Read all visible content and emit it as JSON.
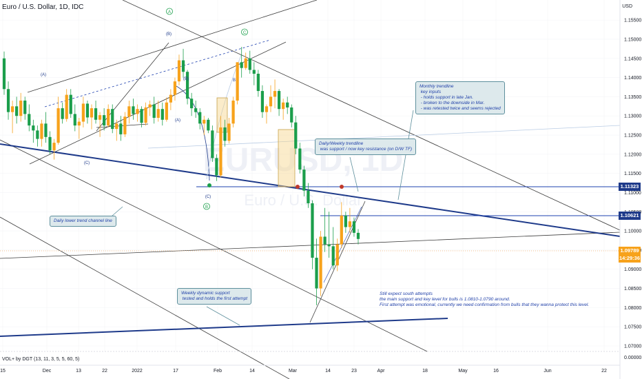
{
  "symbol": "Euro / U.S. Dollar, 1D, IDC",
  "currency": "USD",
  "indicator_label": "VOL+ by DGT (13, 11, 3, 5, 5, 60, 5)",
  "watermark": {
    "big": "EURUSD, 1D",
    "small": "Euro / U.S. Dollar"
  },
  "colors": {
    "up": "#f7a21b",
    "down": "#1b9e4b",
    "line": "#1e3a8a",
    "channel": "#3d3d3d",
    "hline": "#1e40af",
    "orange_dash": "#f6b26b"
  },
  "callouts": {
    "monthly": "Monthly trendline\n key inputs\n - holds support in late Jan.\n - broken to the downside in Mar.\n - was retested twice and seems rejected",
    "daily_weekly": "Daily/Weekly trendline\n was support / now key resistance (on D/W TF)",
    "lower_channel": "Daily lower trend channel line",
    "weekly_support": "Weekly dynamic support\n tested and holds the first attempt"
  },
  "bottom_note": "Still expect south attempts\nthe main support and key level for bulls is 1.0810-1.0790 around.\nFirst attempt was emotional, currently we need confirmation from bulls that they wanna protect this level.",
  "wave_labels": [
    "(A)",
    "(B)",
    "(C)",
    "(A)",
    "(B)",
    "(C)",
    "A",
    "C",
    "B",
    "B"
  ],
  "price_labels": [
    {
      "text": "1.11323",
      "color": "#1e3a8a"
    },
    {
      "text": "1.10621",
      "color": "#1e3a8a"
    },
    {
      "text": "1.09789",
      "color": "#f7a21b"
    },
    {
      "text": "14:29:36",
      "color": "#f7a21b"
    }
  ],
  "chart_data": {
    "type": "candlestick",
    "title": "Euro / U.S. Dollar, 1D, IDC",
    "x_ticks": [
      "15",
      "Dec",
      "13",
      "22",
      "2022",
      "17",
      "Feb",
      "14",
      "Mar",
      "14",
      "23",
      "Apr",
      "18",
      "May",
      "16",
      "Jun",
      "22"
    ],
    "y_ticks": [
      "1.15500",
      "1.15000",
      "1.14500",
      "1.14000",
      "1.13500",
      "1.13000",
      "1.12500",
      "1.12000",
      "1.11500",
      "1.11000",
      "1.10500",
      "1.10000",
      "1.09500",
      "1.09000",
      "1.08500",
      "1.08000",
      "1.07500",
      "1.07000"
    ],
    "ylim": [
      1.07,
      1.157
    ],
    "candles": [
      [
        1.145,
        1.1468,
        1.1355,
        1.137
      ],
      [
        1.137,
        1.139,
        1.129,
        1.131
      ],
      [
        1.131,
        1.134,
        1.1255,
        1.1325
      ],
      [
        1.1325,
        1.135,
        1.128,
        1.13
      ],
      [
        1.13,
        1.136,
        1.1285,
        1.134
      ],
      [
        1.134,
        1.135,
        1.129,
        1.1305
      ],
      [
        1.1305,
        1.133,
        1.126,
        1.1275
      ],
      [
        1.1275,
        1.129,
        1.123,
        1.1262
      ],
      [
        1.1262,
        1.1275,
        1.122,
        1.124
      ],
      [
        1.124,
        1.129,
        1.122,
        1.128
      ],
      [
        1.128,
        1.131,
        1.123,
        1.1245
      ],
      [
        1.1245,
        1.126,
        1.12,
        1.121
      ],
      [
        1.121,
        1.124,
        1.1186,
        1.123
      ],
      [
        1.123,
        1.135,
        1.1225,
        1.132
      ],
      [
        1.132,
        1.1335,
        1.128,
        1.1292
      ],
      [
        1.1292,
        1.137,
        1.1285,
        1.1355
      ],
      [
        1.1355,
        1.137,
        1.1295,
        1.1305
      ],
      [
        1.1305,
        1.133,
        1.126,
        1.1275
      ],
      [
        1.1275,
        1.1295,
        1.124,
        1.1285
      ],
      [
        1.1285,
        1.135,
        1.127,
        1.1332
      ],
      [
        1.1332,
        1.134,
        1.128,
        1.1296
      ],
      [
        1.1296,
        1.133,
        1.1265,
        1.132
      ],
      [
        1.132,
        1.134,
        1.128,
        1.129
      ],
      [
        1.129,
        1.131,
        1.1245,
        1.1302
      ],
      [
        1.1302,
        1.132,
        1.1262,
        1.1275
      ],
      [
        1.1275,
        1.133,
        1.127,
        1.1318
      ],
      [
        1.1318,
        1.133,
        1.1255,
        1.1266
      ],
      [
        1.1266,
        1.129,
        1.1235,
        1.128
      ],
      [
        1.128,
        1.13,
        1.1235,
        1.1252
      ],
      [
        1.1252,
        1.131,
        1.1245,
        1.1298
      ],
      [
        1.1298,
        1.134,
        1.128,
        1.1325
      ],
      [
        1.1325,
        1.1345,
        1.129,
        1.1305
      ],
      [
        1.1305,
        1.133,
        1.1285,
        1.1318
      ],
      [
        1.1318,
        1.1325,
        1.127,
        1.1282
      ],
      [
        1.1282,
        1.1335,
        1.1275,
        1.1322
      ],
      [
        1.1322,
        1.134,
        1.13,
        1.133
      ],
      [
        1.133,
        1.135,
        1.128,
        1.1295
      ],
      [
        1.1295,
        1.134,
        1.1285,
        1.1318
      ],
      [
        1.1318,
        1.1335,
        1.1275,
        1.129
      ],
      [
        1.129,
        1.1348,
        1.1285,
        1.1335
      ],
      [
        1.1335,
        1.137,
        1.1315,
        1.1355
      ],
      [
        1.1355,
        1.14,
        1.134,
        1.139
      ],
      [
        1.139,
        1.146,
        1.138,
        1.1445
      ],
      [
        1.1445,
        1.1475,
        1.14,
        1.1415
      ],
      [
        1.1415,
        1.142,
        1.133,
        1.1345
      ],
      [
        1.1345,
        1.136,
        1.13,
        1.132
      ],
      [
        1.132,
        1.134,
        1.1295,
        1.131
      ],
      [
        1.131,
        1.132,
        1.1265,
        1.128
      ],
      [
        1.128,
        1.13,
        1.125,
        1.129
      ],
      [
        1.129,
        1.1295,
        1.1255,
        1.1262
      ],
      [
        1.1262,
        1.1275,
        1.118,
        1.119
      ],
      [
        1.119,
        1.12,
        1.113,
        1.1145
      ],
      [
        1.1145,
        1.13,
        1.114,
        1.127
      ],
      [
        1.127,
        1.129,
        1.122,
        1.1235
      ],
      [
        1.1235,
        1.1295,
        1.1228,
        1.128
      ],
      [
        1.128,
        1.135,
        1.127,
        1.134
      ],
      [
        1.134,
        1.144,
        1.133,
        1.144
      ],
      [
        1.144,
        1.148,
        1.14,
        1.1425
      ],
      [
        1.1425,
        1.1465,
        1.142,
        1.145
      ],
      [
        1.145,
        1.147,
        1.141,
        1.142
      ],
      [
        1.142,
        1.144,
        1.138,
        1.141
      ],
      [
        1.141,
        1.142,
        1.135,
        1.1365
      ],
      [
        1.1365,
        1.138,
        1.1295,
        1.131
      ],
      [
        1.131,
        1.133,
        1.128,
        1.1325
      ],
      [
        1.1325,
        1.138,
        1.131,
        1.135
      ],
      [
        1.135,
        1.1395,
        1.132,
        1.1365
      ],
      [
        1.1365,
        1.137,
        1.13,
        1.1318
      ],
      [
        1.1318,
        1.1345,
        1.129,
        1.1335
      ],
      [
        1.1335,
        1.135,
        1.1305,
        1.1322
      ],
      [
        1.1322,
        1.133,
        1.127,
        1.1283
      ],
      [
        1.1283,
        1.13,
        1.12,
        1.1215
      ],
      [
        1.1215,
        1.123,
        1.115,
        1.116
      ],
      [
        1.116,
        1.117,
        1.109,
        1.1105
      ],
      [
        1.1105,
        1.1125,
        1.106,
        1.1072
      ],
      [
        1.1072,
        1.108,
        1.09,
        1.093
      ],
      [
        1.093,
        1.098,
        1.0806,
        1.085
      ],
      [
        1.085,
        1.1,
        1.083,
        1.0985
      ],
      [
        1.0985,
        1.106,
        1.0945,
        1.0965
      ],
      [
        1.0965,
        1.105,
        1.093,
        1.096
      ],
      [
        1.096,
        1.101,
        1.09,
        1.091
      ],
      [
        1.091,
        1.098,
        1.0895,
        1.0965
      ],
      [
        1.0965,
        1.1075,
        1.0955,
        1.104
      ],
      [
        1.104,
        1.105,
        1.0995,
        1.101
      ],
      [
        1.101,
        1.106,
        1.0995,
        1.1025
      ],
      [
        1.1025,
        1.1035,
        1.0985,
        1.0995
      ],
      [
        1.0995,
        1.1005,
        1.0965,
        1.0979
      ]
    ]
  }
}
